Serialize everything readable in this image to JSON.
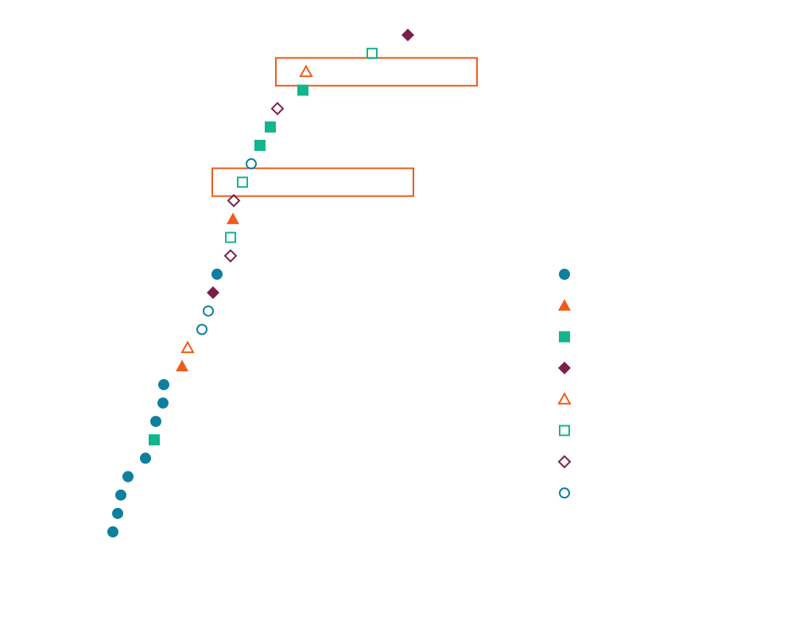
{
  "chart_data": {
    "type": "dot",
    "categories": [
      null,
      null,
      null,
      null,
      null,
      null,
      null,
      null,
      null,
      null,
      null,
      null,
      null,
      null,
      null,
      null,
      null,
      null,
      null,
      null,
      null,
      null,
      null,
      null,
      null,
      null,
      null,
      null
    ],
    "xlim": [
      0,
      100
    ],
    "highlight": [
      2,
      8
    ],
    "highlight_color": "#f05a1a",
    "legend": "right",
    "series": [
      {
        "color": "#0f7fa0",
        "marker": "circle",
        "filled": true,
        "values": [
          null,
          null,
          null,
          null,
          null,
          null,
          null,
          null,
          null,
          null,
          null,
          null,
          null,
          34.6,
          null,
          null,
          null,
          null,
          null,
          21.2,
          21,
          19.2,
          null,
          16.6,
          12.2,
          10.4,
          9.6,
          8.4
        ]
      },
      {
        "color": "#f05a1a",
        "marker": "triangle",
        "filled": true,
        "values": [
          null,
          null,
          null,
          null,
          null,
          null,
          null,
          null,
          null,
          null,
          38.6,
          null,
          null,
          null,
          null,
          null,
          null,
          null,
          25.8,
          null,
          null,
          null,
          null,
          null,
          null,
          null,
          null,
          null
        ]
      },
      {
        "color": "#13b58a",
        "marker": "square",
        "filled": true,
        "values": [
          null,
          null,
          null,
          56.2,
          null,
          48,
          45.4,
          null,
          null,
          null,
          null,
          null,
          null,
          null,
          null,
          null,
          null,
          null,
          null,
          null,
          null,
          null,
          18.8,
          null,
          null,
          null,
          null,
          null
        ]
      },
      {
        "color": "#7b1f4a",
        "marker": "diamond",
        "filled": true,
        "values": [
          82.6,
          null,
          null,
          null,
          null,
          null,
          null,
          null,
          null,
          null,
          null,
          null,
          null,
          null,
          33.6,
          null,
          null,
          null,
          null,
          null,
          null,
          null,
          null,
          null,
          null,
          null,
          null,
          null
        ]
      },
      {
        "color": "#f05a1a",
        "marker": "triangle",
        "filled": false,
        "values": [
          null,
          null,
          57,
          null,
          null,
          null,
          null,
          null,
          null,
          null,
          null,
          null,
          null,
          null,
          null,
          null,
          null,
          27.2,
          null,
          null,
          null,
          null,
          null,
          null,
          null,
          null,
          null,
          null
        ]
      },
      {
        "color": "#13b58a",
        "marker": "square",
        "filled": false,
        "values": [
          null,
          73.6,
          null,
          null,
          null,
          null,
          null,
          null,
          41,
          null,
          null,
          38,
          null,
          null,
          null,
          null,
          null,
          null,
          null,
          null,
          null,
          null,
          null,
          null,
          null,
          null,
          null,
          null
        ]
      },
      {
        "color": "#7b1f4a",
        "marker": "diamond",
        "filled": false,
        "values": [
          null,
          null,
          null,
          null,
          49.8,
          null,
          null,
          null,
          null,
          38.8,
          null,
          null,
          38,
          null,
          null,
          null,
          null,
          null,
          null,
          null,
          null,
          null,
          null,
          null,
          null,
          null,
          null,
          null
        ]
      },
      {
        "color": "#0f7fa0",
        "marker": "circle",
        "filled": false,
        "values": [
          null,
          null,
          null,
          null,
          null,
          null,
          null,
          43.2,
          null,
          null,
          null,
          null,
          null,
          null,
          null,
          32.4,
          30.8,
          null,
          null,
          null,
          null,
          null,
          null,
          null,
          null,
          null,
          null,
          null
        ]
      }
    ]
  }
}
